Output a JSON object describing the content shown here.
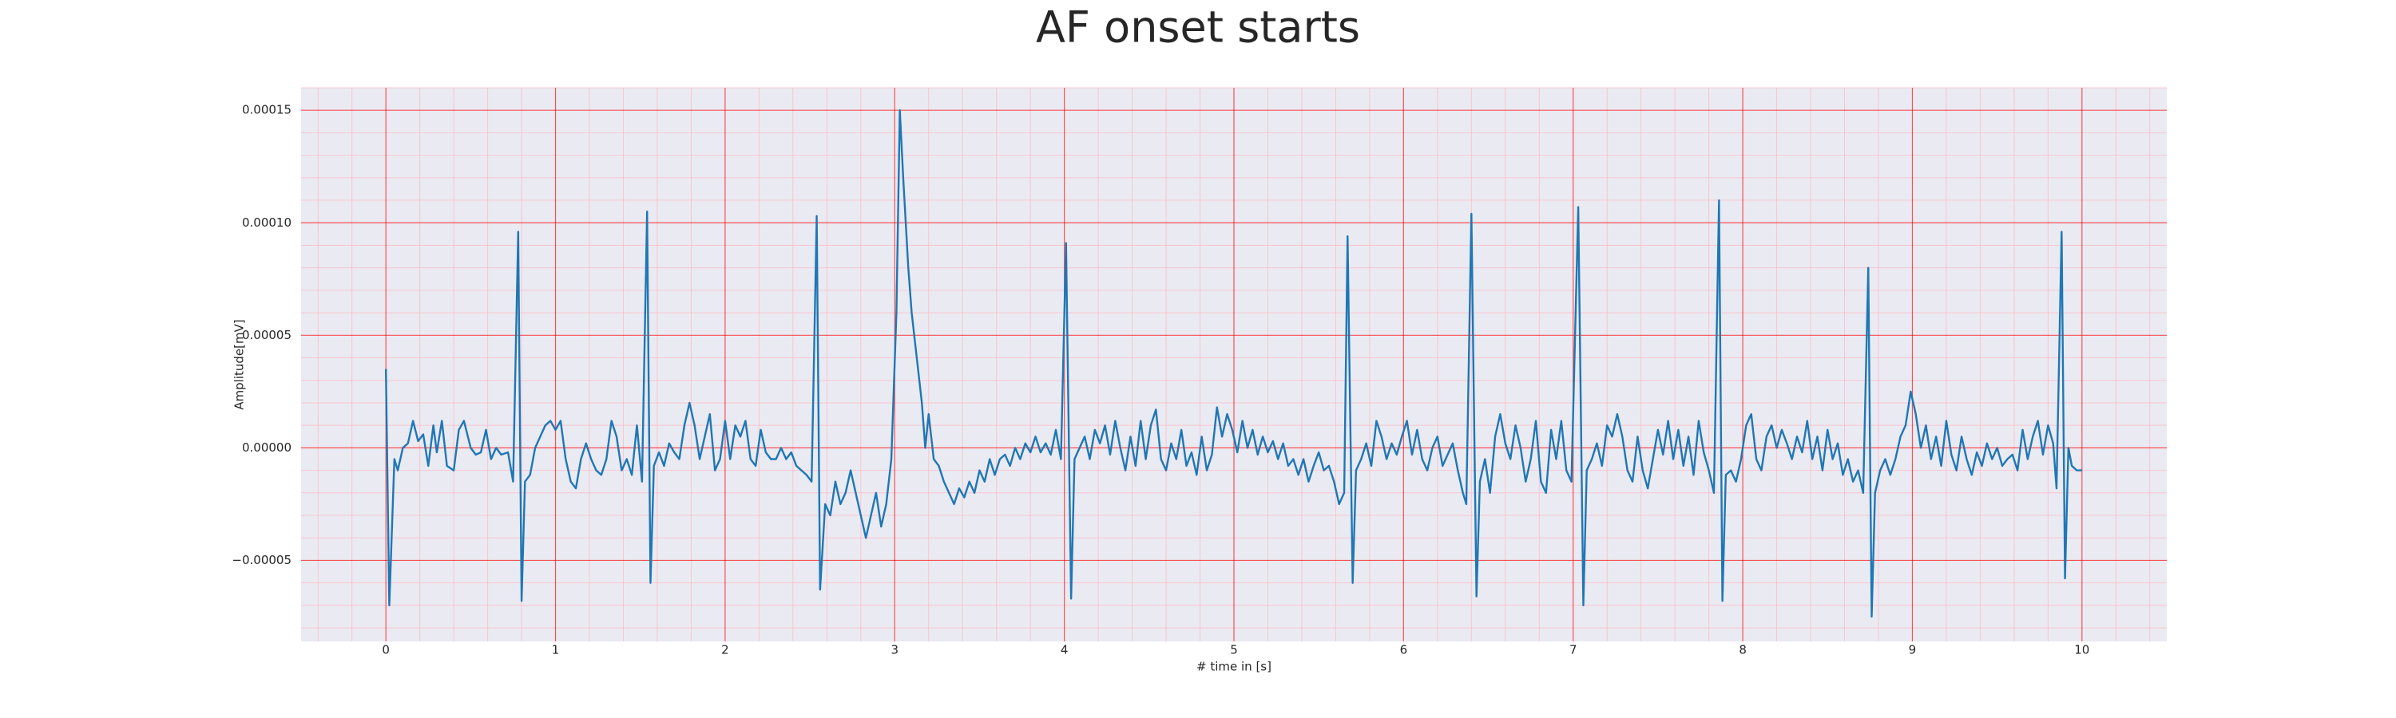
{
  "chart_data": {
    "type": "line",
    "title": "AF onset starts",
    "xlabel": "# time in [s]",
    "ylabel": "Amplitude[mV]",
    "color": "#1f77b4",
    "grid": true,
    "minor_grid": true,
    "xlim": [
      -0.5,
      10.5
    ],
    "xticks": [
      0,
      1,
      2,
      3,
      4,
      5,
      6,
      7,
      8,
      9,
      10
    ],
    "ylim": [
      -8.6e-05,
      0.00016
    ],
    "yticks": [
      {
        "value": -5e-05,
        "label": "−0.00005"
      },
      {
        "value": 0,
        "label": "0.00000"
      },
      {
        "value": 5e-05,
        "label": "0.00005"
      },
      {
        "value": 0.0001,
        "label": "0.00010"
      },
      {
        "value": 0.00015,
        "label": "0.00015"
      }
    ],
    "x": [
      0,
      0.02,
      0.05,
      0.07,
      0.1,
      0.13,
      0.16,
      0.19,
      0.22,
      0.25,
      0.28,
      0.3,
      0.33,
      0.36,
      0.4,
      0.43,
      0.46,
      0.5,
      0.53,
      0.56,
      0.59,
      0.62,
      0.65,
      0.68,
      0.72,
      0.75,
      0.78,
      0.8,
      0.82,
      0.85,
      0.88,
      0.91,
      0.94,
      0.97,
      1.0,
      1.03,
      1.06,
      1.09,
      1.12,
      1.15,
      1.18,
      1.21,
      1.24,
      1.27,
      1.3,
      1.33,
      1.36,
      1.39,
      1.42,
      1.45,
      1.48,
      1.51,
      1.54,
      1.56,
      1.58,
      1.61,
      1.64,
      1.67,
      1.7,
      1.73,
      1.76,
      1.79,
      1.82,
      1.85,
      1.88,
      1.91,
      1.94,
      1.97,
      2.0,
      2.03,
      2.06,
      2.09,
      2.12,
      2.15,
      2.18,
      2.21,
      2.24,
      2.27,
      2.3,
      2.33,
      2.36,
      2.39,
      2.42,
      2.45,
      2.48,
      2.51,
      2.54,
      2.56,
      2.59,
      2.62,
      2.65,
      2.68,
      2.71,
      2.74,
      2.77,
      2.8,
      2.83,
      2.86,
      2.89,
      2.92,
      2.95,
      2.98,
      3.01,
      3.03,
      3.05,
      3.08,
      3.1,
      3.13,
      3.16,
      3.18,
      3.2,
      3.23,
      3.26,
      3.29,
      3.32,
      3.35,
      3.38,
      3.41,
      3.44,
      3.47,
      3.5,
      3.53,
      3.56,
      3.59,
      3.62,
      3.65,
      3.68,
      3.71,
      3.74,
      3.77,
      3.8,
      3.83,
      3.86,
      3.89,
      3.92,
      3.95,
      3.98,
      4.01,
      4.04,
      4.06,
      4.09,
      4.12,
      4.15,
      4.18,
      4.21,
      4.24,
      4.27,
      4.3,
      4.33,
      4.36,
      4.39,
      4.42,
      4.45,
      4.48,
      4.51,
      4.54,
      4.57,
      4.6,
      4.63,
      4.66,
      4.69,
      4.72,
      4.75,
      4.78,
      4.81,
      4.84,
      4.87,
      4.9,
      4.93,
      4.96,
      4.99,
      5.02,
      5.05,
      5.08,
      5.11,
      5.14,
      5.17,
      5.2,
      5.23,
      5.26,
      5.29,
      5.32,
      5.35,
      5.38,
      5.41,
      5.44,
      5.47,
      5.5,
      5.53,
      5.56,
      5.59,
      5.62,
      5.65,
      5.67,
      5.7,
      5.72,
      5.75,
      5.78,
      5.81,
      5.84,
      5.87,
      5.9,
      5.93,
      5.96,
      5.99,
      6.02,
      6.05,
      6.08,
      6.11,
      6.14,
      6.17,
      6.2,
      6.23,
      6.26,
      6.29,
      6.32,
      6.35,
      6.37,
      6.4,
      6.43,
      6.45,
      6.48,
      6.51,
      6.54,
      6.57,
      6.6,
      6.63,
      6.66,
      6.69,
      6.72,
      6.75,
      6.78,
      6.81,
      6.84,
      6.87,
      6.9,
      6.93,
      6.96,
      6.99,
      7.03,
      7.06,
      7.08,
      7.11,
      7.14,
      7.17,
      7.2,
      7.23,
      7.26,
      7.29,
      7.32,
      7.35,
      7.38,
      7.41,
      7.44,
      7.47,
      7.5,
      7.53,
      7.56,
      7.59,
      7.62,
      7.65,
      7.68,
      7.71,
      7.74,
      7.77,
      7.8,
      7.83,
      7.86,
      7.88,
      7.9,
      7.93,
      7.96,
      7.99,
      8.02,
      8.05,
      8.08,
      8.11,
      8.14,
      8.17,
      8.2,
      8.23,
      8.26,
      8.29,
      8.32,
      8.35,
      8.38,
      8.41,
      8.44,
      8.47,
      8.5,
      8.53,
      8.56,
      8.59,
      8.62,
      8.65,
      8.68,
      8.71,
      8.74,
      8.76,
      8.78,
      8.81,
      8.84,
      8.87,
      8.9,
      8.93,
      8.96,
      8.99,
      9.02,
      9.05,
      9.08,
      9.11,
      9.14,
      9.17,
      9.2,
      9.23,
      9.26,
      9.29,
      9.32,
      9.35,
      9.38,
      9.41,
      9.44,
      9.47,
      9.5,
      9.53,
      9.56,
      9.59,
      9.62,
      9.65,
      9.68,
      9.71,
      9.74,
      9.77,
      9.8,
      9.83,
      9.85,
      9.88,
      9.9,
      9.92,
      9.94,
      9.97,
      10.0
    ],
    "values": [
      3.5e-05,
      -7e-05,
      -5e-06,
      -1e-05,
      0,
      2e-06,
      1.2e-05,
      3e-06,
      6e-06,
      -8e-06,
      1e-05,
      -2e-06,
      1.2e-05,
      -8e-06,
      -1e-05,
      8e-06,
      1.2e-05,
      0,
      -3e-06,
      -2e-06,
      8e-06,
      -5e-06,
      0,
      -3e-06,
      -2e-06,
      -1.5e-05,
      9.6e-05,
      -6.8e-05,
      -1.5e-05,
      -1.2e-05,
      0,
      5e-06,
      1e-05,
      1.2e-05,
      8e-06,
      1.2e-05,
      -5e-06,
      -1.5e-05,
      -1.8e-05,
      -5e-06,
      2e-06,
      -5e-06,
      -1e-05,
      -1.2e-05,
      -5e-06,
      1.2e-05,
      5e-06,
      -1e-05,
      -5e-06,
      -1.2e-05,
      1e-05,
      -1.5e-05,
      0.000105,
      -6e-05,
      -8e-06,
      -2e-06,
      -8e-06,
      2e-06,
      -2e-06,
      -5e-06,
      1e-05,
      2e-05,
      1e-05,
      -5e-06,
      5e-06,
      1.5e-05,
      -1e-05,
      -5e-06,
      1.2e-05,
      -5e-06,
      1e-05,
      5e-06,
      1.2e-05,
      -5e-06,
      -8e-06,
      8e-06,
      -2e-06,
      -5e-06,
      -5e-06,
      0,
      -5e-06,
      -2e-06,
      -8e-06,
      -1e-05,
      -1.2e-05,
      -1.5e-05,
      0.000103,
      -6.3e-05,
      -2.5e-05,
      -3e-05,
      -1.5e-05,
      -2.5e-05,
      -2e-05,
      -1e-05,
      -2e-05,
      -3e-05,
      -4e-05,
      -3e-05,
      -2e-05,
      -3.5e-05,
      -2.5e-05,
      -5e-06,
      6e-05,
      0.00015,
      0.00012,
      8e-05,
      6e-05,
      4e-05,
      2e-05,
      0,
      1.5e-05,
      -5e-06,
      -8e-06,
      -1.5e-05,
      -2e-05,
      -2.5e-05,
      -1.8e-05,
      -2.2e-05,
      -1.5e-05,
      -2e-05,
      -1e-05,
      -1.5e-05,
      -5e-06,
      -1.2e-05,
      -5e-06,
      -3e-06,
      -8e-06,
      0,
      -5e-06,
      2e-06,
      -2e-06,
      5e-06,
      -2e-06,
      2e-06,
      -3e-06,
      8e-06,
      -5e-06,
      9.1e-05,
      -6.7e-05,
      -5e-06,
      0,
      5e-06,
      -5e-06,
      8e-06,
      2e-06,
      1e-05,
      -3e-06,
      1.2e-05,
      0,
      -1e-05,
      5e-06,
      -8e-06,
      1.2e-05,
      -5e-06,
      1e-05,
      1.7e-05,
      -5e-06,
      -1e-05,
      2e-06,
      -5e-06,
      8e-06,
      -8e-06,
      -2e-06,
      -1.2e-05,
      5e-06,
      -1e-05,
      -3e-06,
      1.8e-05,
      5e-06,
      1.5e-05,
      8e-06,
      -2e-06,
      1.2e-05,
      0,
      8e-06,
      -3e-06,
      5e-06,
      -2e-06,
      3e-06,
      -5e-06,
      2e-06,
      -8e-06,
      -5e-06,
      -1.2e-05,
      -5e-06,
      -1.5e-05,
      -8e-06,
      -2e-06,
      -1e-05,
      -8e-06,
      -1.5e-05,
      -2.5e-05,
      -2e-05,
      9.4e-05,
      -6e-05,
      -1e-05,
      -5e-06,
      2e-06,
      -8e-06,
      1.2e-05,
      5e-06,
      -5e-06,
      2e-06,
      -3e-06,
      5e-06,
      1.2e-05,
      -3e-06,
      8e-06,
      -5e-06,
      -1e-05,
      0,
      5e-06,
      -8e-06,
      -3e-06,
      2e-06,
      -1e-05,
      -2e-05,
      -2.5e-05,
      0.000104,
      -6.6e-05,
      -1.5e-05,
      -5e-06,
      -2e-05,
      5e-06,
      1.5e-05,
      2e-06,
      -5e-06,
      1e-05,
      0,
      -1.5e-05,
      -5e-06,
      1.2e-05,
      -1.5e-05,
      -2e-05,
      8e-06,
      -5e-06,
      1.2e-05,
      -1e-05,
      -1.5e-05,
      0.000107,
      -7e-05,
      -1e-05,
      -5e-06,
      2e-06,
      -8e-06,
      1e-05,
      5e-06,
      1.5e-05,
      5e-06,
      -1e-05,
      -1.5e-05,
      5e-06,
      -1e-05,
      -1.8e-05,
      -5e-06,
      8e-06,
      -3e-06,
      1.2e-05,
      -5e-06,
      8e-06,
      -8e-06,
      5e-06,
      -1.2e-05,
      1.2e-05,
      -2e-06,
      -1e-05,
      -2e-05,
      0.00011,
      -6.8e-05,
      -1.2e-05,
      -1e-05,
      -1.5e-05,
      -5e-06,
      1e-05,
      1.5e-05,
      -5e-06,
      -1e-05,
      5e-06,
      1e-05,
      0,
      8e-06,
      2e-06,
      -5e-06,
      5e-06,
      -2e-06,
      1.2e-05,
      -5e-06,
      5e-06,
      -1e-05,
      8e-06,
      -5e-06,
      2e-06,
      -1.2e-05,
      -5e-06,
      -1.5e-05,
      -1e-05,
      -2e-05,
      8e-05,
      -7.5e-05,
      -2e-05,
      -1e-05,
      -5e-06,
      -1.2e-05,
      -5e-06,
      5e-06,
      1e-05,
      2.5e-05,
      1.5e-05,
      0,
      1e-05,
      -5e-06,
      5e-06,
      -8e-06,
      1.2e-05,
      -3e-06,
      -1e-05,
      5e-06,
      -5e-06,
      -1.2e-05,
      -2e-06,
      -8e-06,
      2e-06,
      -5e-06,
      0,
      -8e-06,
      -5e-06,
      -3e-06,
      -1e-05,
      8e-06,
      -5e-06,
      5e-06,
      1.2e-05,
      -3e-06,
      1e-05,
      2e-06,
      -1.8e-05,
      9.6e-05,
      -5.8e-05,
      0,
      -8e-06,
      -1e-05,
      -1e-05
    ]
  }
}
